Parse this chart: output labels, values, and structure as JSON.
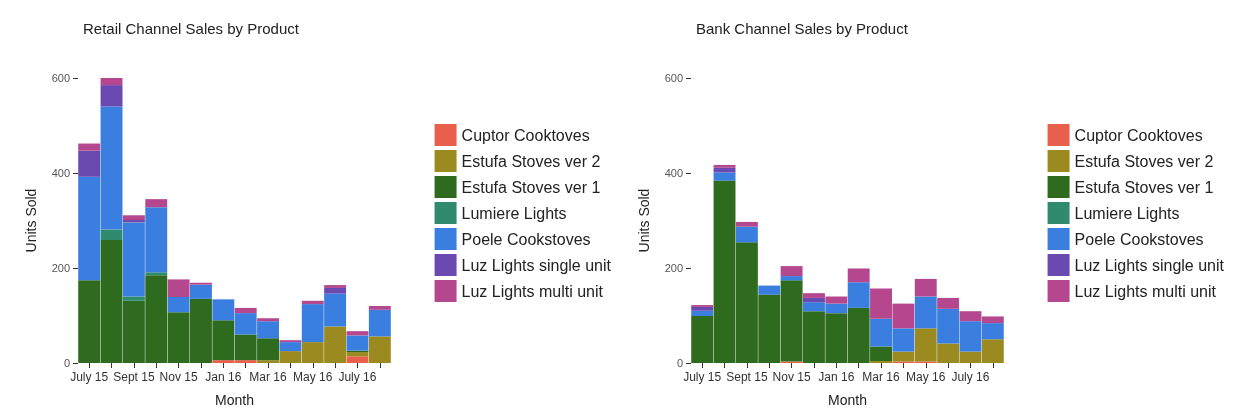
{
  "chart_data": [
    {
      "type": "bar",
      "title": "Retail Channel Sales by Product",
      "xlabel": "Month",
      "ylabel": "Units Sold",
      "stacked": true,
      "legend": "right",
      "grid": false,
      "ylim": [
        0,
        600
      ],
      "yticks": [
        0,
        200,
        400,
        600
      ],
      "categories": [
        "July 15",
        null,
        "Sept 15",
        null,
        "Nov 15",
        null,
        "Jan 16",
        null,
        "Mar 16",
        null,
        "May 16",
        null,
        "July 16",
        null
      ],
      "series": [
        {
          "name": "Cuptor Cooktoves",
          "color": "#e8604c",
          "values": [
            0,
            0,
            0,
            0,
            0,
            0,
            6,
            6,
            0,
            0,
            0,
            0,
            14,
            0
          ]
        },
        {
          "name": "Estufa Stoves ver 2",
          "color": "#9a8a1f",
          "values": [
            0,
            0,
            0,
            0,
            0,
            0,
            0,
            0,
            6,
            25,
            44,
            77,
            9,
            56
          ]
        },
        {
          "name": "Estufa Stoves ver 1",
          "color": "#2e6b1f",
          "values": [
            174,
            259,
            131,
            185,
            107,
            135,
            84,
            54,
            46,
            0,
            0,
            0,
            3,
            0
          ]
        },
        {
          "name": "Lumiere Lights",
          "color": "#2f8a6e",
          "values": [
            0,
            22,
            9,
            6,
            0,
            0,
            0,
            0,
            0,
            0,
            0,
            0,
            0,
            0
          ]
        },
        {
          "name": "Poele Cookstoves",
          "color": "#3a7ee0",
          "values": [
            218,
            259,
            156,
            137,
            32,
            30,
            44,
            45,
            36,
            19,
            80,
            69,
            32,
            56
          ]
        },
        {
          "name": "Luz Lights single unit",
          "color": "#6a4ab0",
          "values": [
            55,
            45,
            5,
            0,
            0,
            0,
            0,
            0,
            0,
            0,
            0,
            12,
            0,
            0
          ]
        },
        {
          "name": "Luz Lights multi unit",
          "color": "#b5478f",
          "values": [
            15,
            15,
            10,
            17,
            37,
            4,
            0,
            11,
            6,
            4,
            7,
            6,
            9,
            8
          ]
        }
      ]
    },
    {
      "type": "bar",
      "title": "Bank Channel Sales by Product",
      "xlabel": "Month",
      "ylabel": "Units Sold",
      "stacked": true,
      "legend": "right",
      "grid": false,
      "ylim": [
        0,
        600
      ],
      "yticks": [
        0,
        200,
        400,
        600
      ],
      "categories": [
        "July 15",
        null,
        "Sept 15",
        null,
        "Nov 15",
        null,
        "Jan 16",
        null,
        "Mar 16",
        null,
        "May 16",
        null,
        "July 16",
        null
      ],
      "series": [
        {
          "name": "Cuptor Cooktoves",
          "color": "#e8604c",
          "values": [
            0,
            0,
            0,
            0,
            3,
            0,
            0,
            0,
            0,
            3,
            3,
            0,
            0,
            0
          ]
        },
        {
          "name": "Estufa Stoves ver 2",
          "color": "#9a8a1f",
          "values": [
            0,
            0,
            0,
            0,
            0,
            0,
            0,
            0,
            4,
            21,
            70,
            41,
            24,
            50
          ]
        },
        {
          "name": "Estufa Stoves ver 1",
          "color": "#2e6b1f",
          "values": [
            99,
            384,
            254,
            144,
            171,
            109,
            105,
            116,
            31,
            0,
            0,
            0,
            0,
            0
          ]
        },
        {
          "name": "Lumiere Lights",
          "color": "#2f8a6e",
          "values": [
            0,
            0,
            0,
            0,
            0,
            0,
            0,
            0,
            0,
            0,
            0,
            0,
            0,
            0
          ]
        },
        {
          "name": "Poele Cookstoves",
          "color": "#3a7ee0",
          "values": [
            11,
            17,
            33,
            19,
            9,
            19,
            20,
            54,
            58,
            49,
            67,
            73,
            64,
            34
          ]
        },
        {
          "name": "Luz Lights single unit",
          "color": "#6a4ab0",
          "values": [
            8,
            10,
            0,
            0,
            0,
            9,
            0,
            0,
            0,
            0,
            0,
            0,
            0,
            0
          ]
        },
        {
          "name": "Luz Lights multi unit",
          "color": "#b5478f",
          "values": [
            4,
            6,
            10,
            0,
            21,
            10,
            15,
            29,
            64,
            52,
            37,
            23,
            21,
            14
          ]
        }
      ]
    }
  ]
}
